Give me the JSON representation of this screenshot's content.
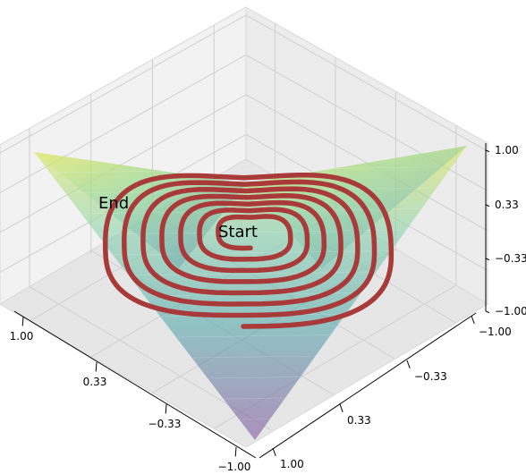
{
  "chart_data": {
    "type": "surface3d",
    "surface_colormap": "viridis",
    "surface_alpha": 0.45,
    "trajectory_color": "#a83a3a",
    "grid": true,
    "axes": {
      "x": {
        "ticks": [
          "1.00",
          "0.33",
          "−0.33",
          "−1.00"
        ],
        "range": [
          -1,
          1
        ]
      },
      "y": {
        "ticks": [
          "−1.00",
          "−0.33",
          "0.33",
          "1.00"
        ],
        "range": [
          -1,
          1
        ]
      },
      "z": {
        "ticks": [
          "1.00",
          "0.33",
          "−0.33",
          "−1.00"
        ],
        "range": [
          -1,
          1
        ]
      }
    },
    "annotations": [
      {
        "id": "start",
        "text": "Start"
      },
      {
        "id": "end",
        "text": "End"
      }
    ],
    "trajectory_turns": 7
  }
}
